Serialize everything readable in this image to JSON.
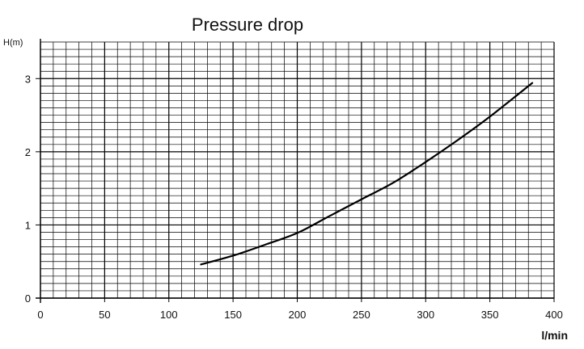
{
  "chart_data": {
    "type": "line",
    "title": "Pressure drop",
    "xlabel": "l/min",
    "ylabel": "H(m)",
    "xlim": [
      0,
      400
    ],
    "ylim": [
      0,
      3.5
    ],
    "x_ticks": [
      0,
      50,
      100,
      150,
      200,
      250,
      300,
      350,
      400
    ],
    "y_ticks": [
      0,
      1,
      2,
      3
    ],
    "grid": true,
    "series": [
      {
        "x": [
          125,
          150,
          175,
          200,
          225,
          250,
          275,
          300,
          325,
          350,
          383
        ],
        "y": [
          0.46,
          0.58,
          0.73,
          0.89,
          1.12,
          1.35,
          1.58,
          1.86,
          2.16,
          2.48,
          2.94
        ]
      }
    ]
  }
}
